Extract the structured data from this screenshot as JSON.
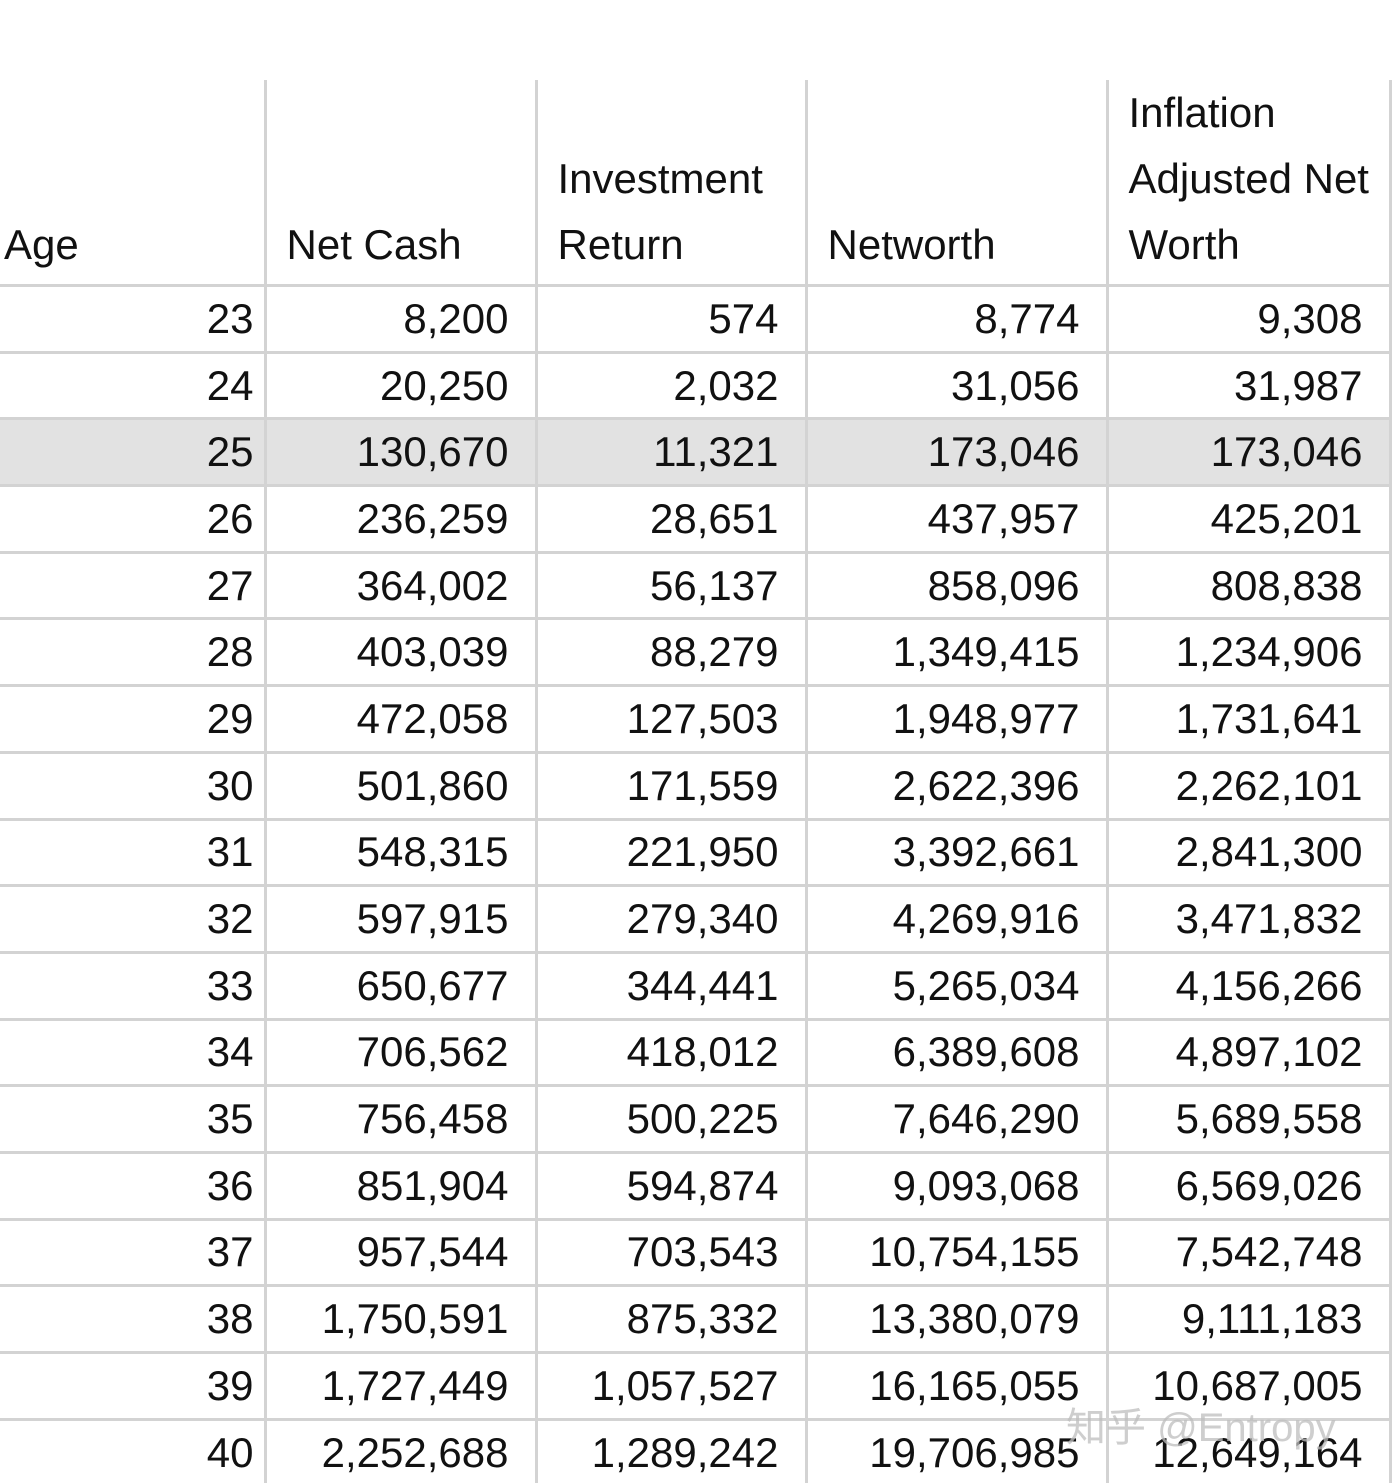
{
  "table": {
    "header": [
      "Age",
      "Net Cash",
      "Investment Return",
      "Networth",
      "Inflation Adjusted Net Worth"
    ],
    "rows": [
      [
        "23",
        "8,200",
        "574",
        "8,774",
        "9,308"
      ],
      [
        "24",
        "20,250",
        "2,032",
        "31,056",
        "31,987"
      ],
      [
        "25",
        "130,670",
        "11,321",
        "173,046",
        "173,046"
      ],
      [
        "26",
        "236,259",
        "28,651",
        "437,957",
        "425,201"
      ],
      [
        "27",
        "364,002",
        "56,137",
        "858,096",
        "808,838"
      ],
      [
        "28",
        "403,039",
        "88,279",
        "1,349,415",
        "1,234,906"
      ],
      [
        "29",
        "472,058",
        "127,503",
        "1,948,977",
        "1,731,641"
      ],
      [
        "30",
        "501,860",
        "171,559",
        "2,622,396",
        "2,262,101"
      ],
      [
        "31",
        "548,315",
        "221,950",
        "3,392,661",
        "2,841,300"
      ],
      [
        "32",
        "597,915",
        "279,340",
        "4,269,916",
        "3,471,832"
      ],
      [
        "33",
        "650,677",
        "344,441",
        "5,265,034",
        "4,156,266"
      ],
      [
        "34",
        "706,562",
        "418,012",
        "6,389,608",
        "4,897,102"
      ],
      [
        "35",
        "756,458",
        "500,225",
        "7,646,290",
        "5,689,558"
      ],
      [
        "36",
        "851,904",
        "594,874",
        "9,093,068",
        "6,569,026"
      ],
      [
        "37",
        "957,544",
        "703,543",
        "10,754,155",
        "7,542,748"
      ],
      [
        "38",
        "1,750,591",
        "875,332",
        "13,380,079",
        "9,111,183"
      ],
      [
        "39",
        "1,727,449",
        "1,057,527",
        "16,165,055",
        "10,687,005"
      ],
      [
        "40",
        "2,252,688",
        "1,289,242",
        "19,706,985",
        "12,649,164"
      ]
    ]
  },
  "watermark": "知乎 @Entropy"
}
